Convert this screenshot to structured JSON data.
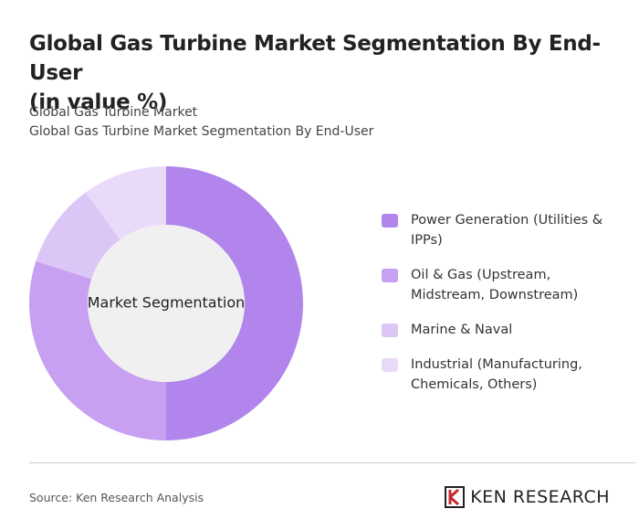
{
  "header": {
    "title_lines": [
      "Global Gas Turbine Market Segmentation By End-User",
      "(in value %)"
    ],
    "subtitle_lines": [
      "Global Gas Turbine Market",
      "Global Gas Turbine Market Segmentation By End-User"
    ]
  },
  "chart_data": {
    "type": "pie",
    "donut": true,
    "center_label": "Market Segmentation",
    "categories": [
      "Power Generation (Utilities & IPPs)",
      "Oil & Gas (Upstream, Midstream, Downstream)",
      "Marine & Naval",
      "Industrial (Manufacturing, Chemicals, Others)"
    ],
    "values": [
      50,
      30,
      10,
      10
    ],
    "colors": [
      "#b285ec",
      "#c7a0f1",
      "#dcc6f6",
      "#e9dafa"
    ]
  },
  "footer": {
    "source": "Source: Ken Research Analysis",
    "logo": "KEN RESEARCH"
  }
}
